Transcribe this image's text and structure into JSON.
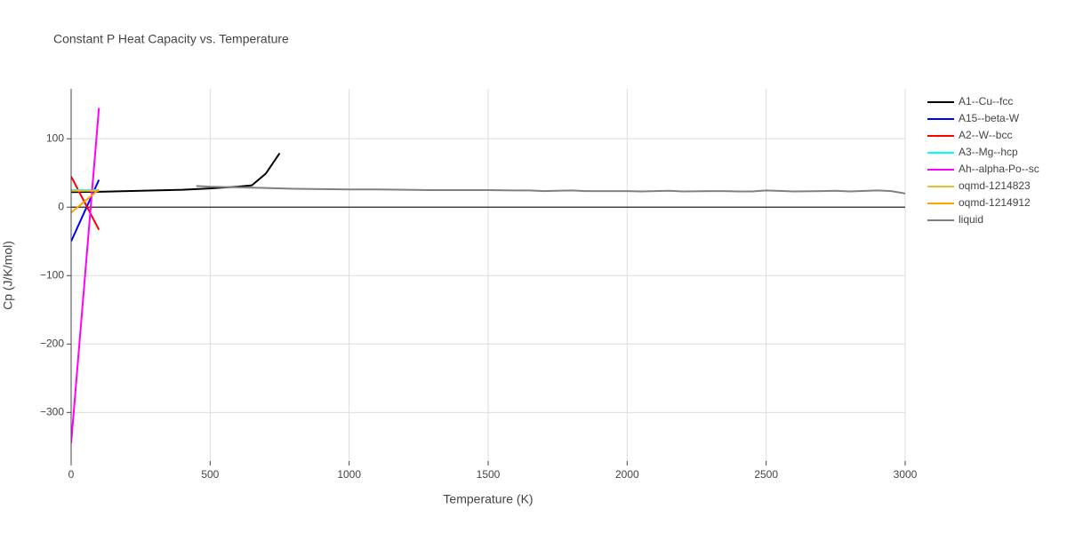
{
  "chart_data": {
    "type": "line",
    "title": "Constant P Heat Capacity vs. Temperature",
    "x_label": "Temperature (K)",
    "y_label": "Cp (J/K/mol)",
    "xlim": [
      0,
      3000
    ],
    "xticks": [
      0,
      500,
      1000,
      1500,
      2000,
      2500,
      3000
    ],
    "ylim": [
      -371,
      173
    ],
    "yticks": [
      {
        "value": -300,
        "label": "−300"
      },
      {
        "value": -200,
        "label": "−200"
      },
      {
        "value": -100,
        "label": "−100"
      },
      0,
      100
    ],
    "grid": true,
    "legend": "top-right",
    "series": [
      {
        "name": "A1--Cu--fcc",
        "color": "#000000",
        "x": [
          0,
          100,
          200,
          300,
          400,
          500,
          600,
          650,
          700,
          750
        ],
        "values": [
          22,
          22.5,
          23.5,
          24.5,
          25.5,
          27.5,
          30,
          32,
          49,
          79
        ]
      },
      {
        "name": "A15--beta-W",
        "color": "#0000ff",
        "x": [
          0,
          100
        ],
        "values": [
          -50,
          40
        ]
      },
      {
        "name": "A2--W--bcc",
        "color": "#ff0000",
        "x": [
          0,
          100
        ],
        "values": [
          45,
          -33
        ]
      },
      {
        "name": "A3--Mg--hcp",
        "color": "#00ffff",
        "x": [
          0,
          100
        ],
        "values": [
          25,
          25
        ]
      },
      {
        "name": "Ah--alpha-Po--sc",
        "color": "#ff00ff",
        "x": [
          0,
          100
        ],
        "values": [
          -345,
          145
        ]
      },
      {
        "name": "oqmd-1214823",
        "color": "#e8c02a",
        "x": [
          0,
          100
        ],
        "values": [
          24,
          24
        ]
      },
      {
        "name": "oqmd-1214912",
        "color": "#ffa500",
        "x": [
          0,
          100
        ],
        "values": [
          -8,
          26
        ]
      },
      {
        "name": "liquid",
        "color": "#808080",
        "x": [
          450,
          500,
          600,
          700,
          800,
          900,
          1000,
          1100,
          1200,
          1300,
          1400,
          1500,
          1600,
          1650,
          1700,
          1800,
          1850,
          1900,
          2000,
          2050,
          2150,
          2200,
          2300,
          2350,
          2400,
          2450,
          2500,
          2600,
          2700,
          2750,
          2800,
          2900,
          2950,
          3000
        ],
        "values": [
          31,
          30,
          29,
          28,
          27,
          26.5,
          26,
          26,
          25.5,
          25,
          25,
          25,
          24.5,
          24.5,
          23.5,
          24.5,
          23.5,
          23.5,
          23.5,
          23,
          24,
          23,
          23.5,
          23.5,
          23,
          23,
          24.5,
          23,
          23.5,
          24,
          23,
          24.5,
          23.5,
          20
        ]
      }
    ]
  }
}
